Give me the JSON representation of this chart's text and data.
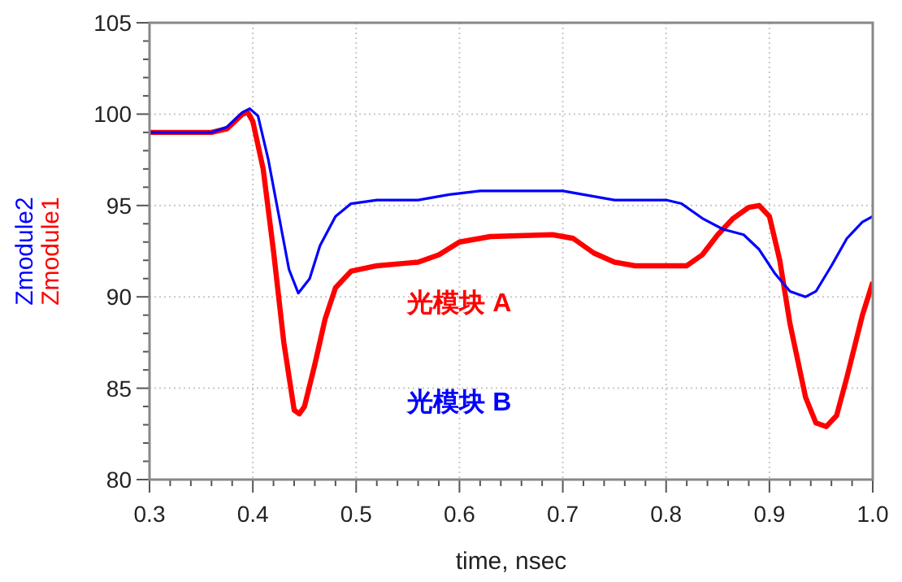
{
  "chart_data": {
    "type": "line",
    "xlabel": "time, nsec",
    "legend": "left",
    "grid": true,
    "line_style": "solid",
    "marker": "none",
    "xlim": [
      0.3,
      1.0
    ],
    "xticks": [
      0.3,
      0.4,
      0.5,
      0.6,
      0.7,
      0.8,
      0.9,
      {
        "value": 1.0,
        "label": "1.0"
      }
    ],
    "ylim": [
      80,
      105
    ],
    "yticks": [
      80,
      85,
      90,
      95,
      100,
      105
    ],
    "annotations": [
      "光模块 A",
      "光模块 B"
    ],
    "series": [
      {
        "name": "Zmodule1",
        "color": "#ff0000",
        "x": [
          0.3,
          0.36,
          0.375,
          0.39,
          0.395,
          0.4,
          0.41,
          0.42,
          0.43,
          0.44,
          0.445,
          0.45,
          0.46,
          0.47,
          0.48,
          0.495,
          0.52,
          0.56,
          0.58,
          0.6,
          0.63,
          0.69,
          0.71,
          0.73,
          0.75,
          0.77,
          0.82,
          0.835,
          0.85,
          0.865,
          0.88,
          0.89,
          0.9,
          0.91,
          0.92,
          0.935,
          0.945,
          0.955,
          0.965,
          0.975,
          0.99,
          1.0
        ],
        "values": [
          99.0,
          99.0,
          99.2,
          100.0,
          100.1,
          99.6,
          97.0,
          92.5,
          87.5,
          83.8,
          83.6,
          84.0,
          86.3,
          88.8,
          90.5,
          91.4,
          91.7,
          91.9,
          92.3,
          93.0,
          93.3,
          93.4,
          93.2,
          92.4,
          91.9,
          91.7,
          91.7,
          92.3,
          93.4,
          94.3,
          94.9,
          95.0,
          94.4,
          92.0,
          88.5,
          84.5,
          83.1,
          82.9,
          83.5,
          85.6,
          89.0,
          90.8
        ]
      },
      {
        "name": "Zmodule2",
        "color": "#0000ff",
        "x": [
          0.3,
          0.36,
          0.375,
          0.39,
          0.397,
          0.405,
          0.415,
          0.425,
          0.435,
          0.444,
          0.455,
          0.465,
          0.48,
          0.495,
          0.52,
          0.56,
          0.59,
          0.62,
          0.7,
          0.72,
          0.75,
          0.8,
          0.815,
          0.835,
          0.855,
          0.875,
          0.89,
          0.905,
          0.92,
          0.935,
          0.945,
          0.96,
          0.975,
          0.99,
          1.0
        ],
        "values": [
          99.0,
          99.0,
          99.3,
          100.1,
          100.3,
          99.9,
          97.5,
          94.5,
          91.5,
          90.2,
          91.0,
          92.8,
          94.4,
          95.1,
          95.3,
          95.3,
          95.6,
          95.8,
          95.8,
          95.6,
          95.3,
          95.3,
          95.1,
          94.3,
          93.7,
          93.4,
          92.6,
          91.3,
          90.3,
          90.0,
          90.3,
          91.7,
          93.2,
          94.1,
          94.4
        ]
      }
    ]
  }
}
